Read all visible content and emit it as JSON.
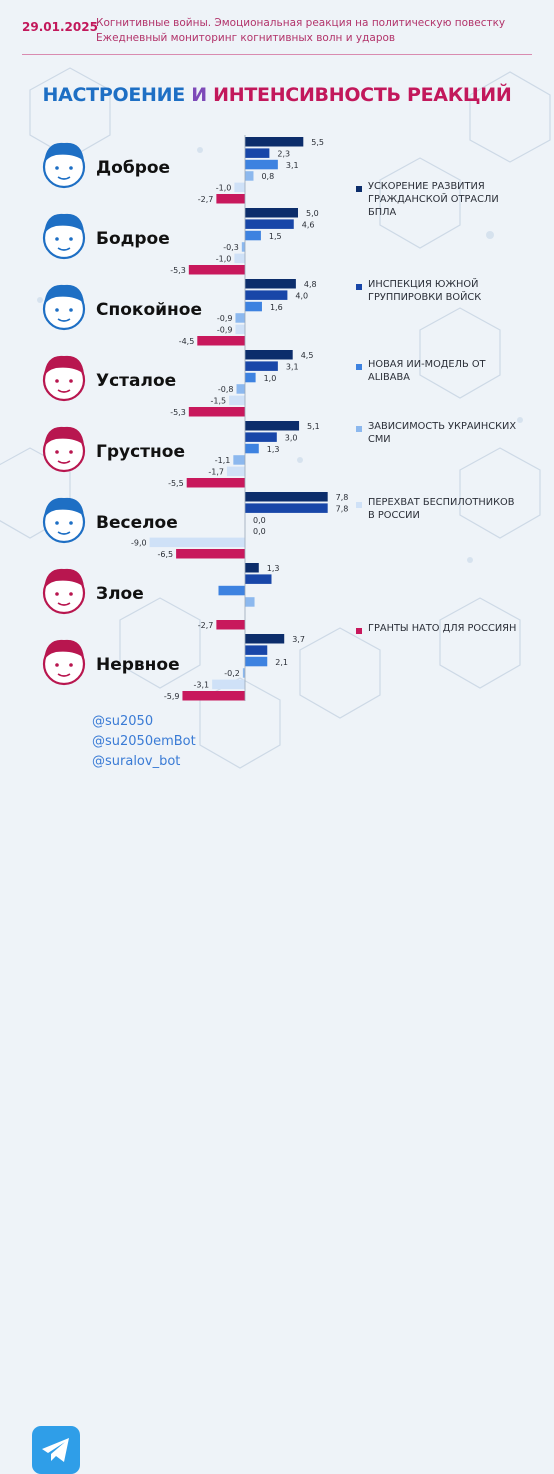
{
  "header": {
    "date": "29.01.2025",
    "line1": "Когнитивные войны. Эмоциональная реакция на политическую повестку",
    "line2": "Ежедневный мониторинг когнитивных волн и ударов"
  },
  "title": {
    "part1": "НАСТРОЕНИЕ",
    "part2": "И",
    "part3": "ИНТЕНСИВНОСТЬ РЕАКЦИЙ"
  },
  "chart_data": {
    "type": "bar",
    "orientation": "horizontal",
    "categories": [
      "Доброе",
      "Бодрое",
      "Спокойное",
      "Усталое",
      "Грустное",
      "Веселое",
      "Злое",
      "Нервное"
    ],
    "series": [
      {
        "name": "УСКОРЕНИЕ РАЗВИТИЯ ГРАЖДАНСКОЙ ОТРАСЛИ БПЛА",
        "color": "#0c2d6b",
        "values": [
          5.5,
          5.0,
          4.8,
          4.5,
          5.1,
          7.8,
          1.3,
          3.7
        ],
        "labels": [
          "5,5",
          "5,0",
          "4,8",
          "4,5",
          "5,1",
          "7,8",
          "1,3",
          "3,7"
        ]
      },
      {
        "name": "ИНСПЕКЦИЯ ЮЖНОЙ ГРУППИРОВКИ ВОЙСК",
        "color": "#1846a8",
        "values": [
          2.3,
          4.6,
          4.0,
          3.1,
          3.0,
          7.8,
          2.5,
          2.1
        ],
        "labels": [
          "2,3",
          "4,6",
          "4,0",
          "3,1",
          "3,0",
          "7,8",
          "",
          ""
        ]
      },
      {
        "name": "НОВАЯ ИИ-МОДЕЛЬ ОТ ALIBABA",
        "color": "#3d82e0",
        "values": [
          3.1,
          1.5,
          1.6,
          1.0,
          1.3,
          0.0,
          -2.5,
          2.1
        ],
        "labels": [
          "3,1",
          "1,5",
          "1,6",
          "1,0",
          "1,3",
          "0,0",
          "",
          "2,1"
        ]
      },
      {
        "name": "ЗАВИСИМОСТЬ УКРАИНСКИХ СМИ",
        "color": "#8cb8ee",
        "values": [
          0.8,
          -0.3,
          -0.9,
          -0.8,
          -1.1,
          0.0,
          0.9,
          -0.2
        ],
        "labels": [
          "0,8",
          "-0,3",
          "-0,9",
          "-0,8",
          "-1,1",
          "0,0",
          "",
          "-0,2"
        ]
      },
      {
        "name": "ПЕРЕХВАТ БЕСПИЛОТНИКОВ В РОССИИ",
        "color": "#cfe1f7",
        "values": [
          -1.0,
          -1.0,
          -0.9,
          -1.5,
          -1.7,
          -9.0,
          0.0,
          -3.1
        ],
        "labels": [
          "-1,0",
          "-1,0",
          "-0,9",
          "-1,5",
          "-1,7",
          "-9,0",
          "",
          "-3,1"
        ]
      },
      {
        "name": "ГРАНТЫ НАТО ДЛЯ РОССИЯН",
        "color": "#c8185c",
        "values": [
          -2.7,
          -5.3,
          -4.5,
          -5.3,
          -5.5,
          -6.5,
          -2.7,
          -5.9
        ],
        "labels": [
          "-2,7",
          "-5,3",
          "-4,5",
          "-5,3",
          "-5,5",
          "-6,5",
          "-2,7",
          "-5,9"
        ]
      }
    ],
    "face_colors": [
      "#1e6fc4",
      "#1e6fc4",
      "#1e6fc4",
      "#b8164f",
      "#b8164f",
      "#1e6fc4",
      "#b8164f",
      "#b8164f"
    ]
  },
  "footer": {
    "handles": [
      "@su2050",
      "@su2050emBot",
      "@suralov_bot"
    ]
  }
}
